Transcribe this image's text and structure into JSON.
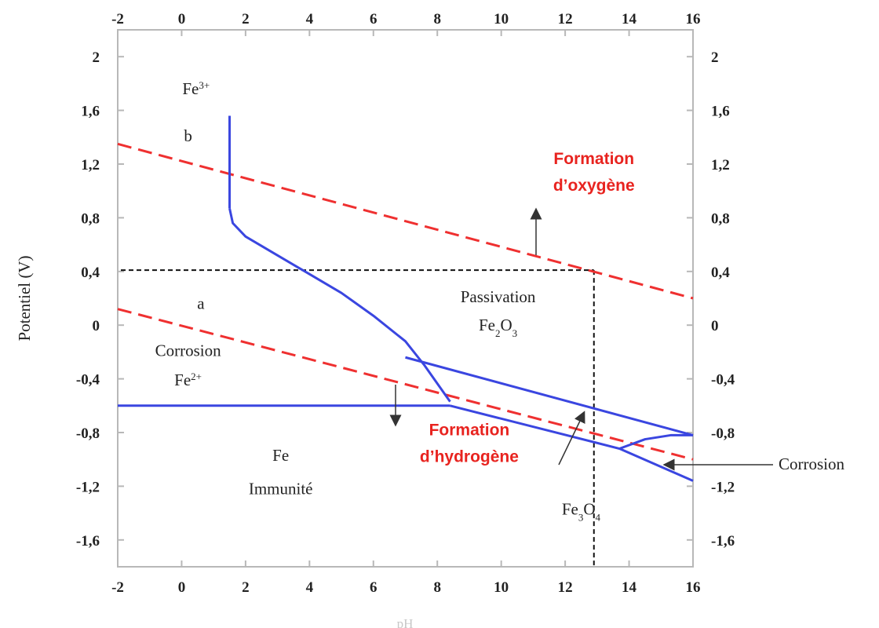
{
  "chart_data": {
    "type": "line",
    "title": "",
    "xlabel": "pH",
    "ylabel": "Potentiel (V)",
    "xlim": [
      -2,
      16
    ],
    "ylim": [
      -1.8,
      2.2
    ],
    "x_ticks": [
      -2,
      0,
      2,
      4,
      6,
      8,
      10,
      12,
      14,
      16
    ],
    "x_tick_labels": [
      "-2",
      "0",
      "2",
      "4",
      "6",
      "8",
      "10",
      "12",
      "14",
      "16"
    ],
    "y_ticks": [
      2,
      1.6,
      1.2,
      0.8,
      0.4,
      0,
      -0.4,
      -0.8,
      -1.2,
      -1.6
    ],
    "y_tick_labels": [
      "2",
      "1,6",
      "1,2",
      "0,8",
      "0,4",
      "0",
      "-0,4",
      "-0,8",
      "-1,2",
      "-1,6"
    ],
    "boundaries": [
      {
        "id": "fe3-fe2-vertical",
        "points": [
          [
            1.5,
            1.56
          ],
          [
            1.5,
            0.87
          ]
        ]
      },
      {
        "id": "fe3-oxide",
        "points": [
          [
            1.5,
            0.87
          ],
          [
            1.6,
            0.76
          ],
          [
            2.0,
            0.66
          ],
          [
            3.0,
            0.52
          ],
          [
            4.0,
            0.38
          ],
          [
            5.0,
            0.24
          ],
          [
            6.0,
            0.07
          ],
          [
            7.0,
            -0.12
          ],
          [
            7.6,
            -0.3
          ],
          [
            8.4,
            -0.57
          ]
        ]
      },
      {
        "id": "fe2-fe-horizontal",
        "points": [
          [
            -2,
            -0.6
          ],
          [
            8.4,
            -0.6
          ]
        ]
      },
      {
        "id": "fe-fe3o4",
        "points": [
          [
            8.4,
            -0.6
          ],
          [
            13.7,
            -0.92
          ],
          [
            16,
            -1.16
          ]
        ]
      },
      {
        "id": "fe3o4-fe2o3-upper",
        "points": [
          [
            7.0,
            -0.24
          ],
          [
            16,
            -0.82
          ]
        ]
      },
      {
        "id": "fe3o4-loop-lower",
        "points": [
          [
            13.7,
            -0.92
          ],
          [
            14.5,
            -0.85
          ],
          [
            15.3,
            -0.82
          ],
          [
            16,
            -0.82
          ]
        ]
      }
    ],
    "water_lines": [
      {
        "label": "a",
        "points": [
          [
            -2,
            0.12
          ],
          [
            16,
            -1.0
          ]
        ]
      },
      {
        "label": "b",
        "points": [
          [
            -2,
            1.35
          ],
          [
            16,
            0.2
          ]
        ]
      }
    ],
    "reference_point": {
      "x": 12.9,
      "y": 0.41
    },
    "regions": [
      {
        "id": "fe3",
        "text": "Fe",
        "sup": "3+",
        "x": 0.45,
        "y": 1.72
      },
      {
        "id": "corrosion-fe2-a",
        "text": "Corrosion",
        "x": 0.2,
        "y": -0.23
      },
      {
        "id": "corrosion-fe2-b",
        "text": "Fe",
        "sup": "2+",
        "x": 0.2,
        "y": -0.45
      },
      {
        "id": "passivation-a",
        "text": "Passivation",
        "x": 9.9,
        "y": 0.17
      },
      {
        "id": "passivation-b",
        "text": "Fe",
        "sub": "2",
        "text2": "O",
        "sub2": "3",
        "x": 9.9,
        "y": -0.04
      },
      {
        "id": "immunite-a",
        "text": "Fe",
        "x": 3.1,
        "y": -1.01
      },
      {
        "id": "immunite-b",
        "text": "Immunité",
        "x": 3.1,
        "y": -1.26
      },
      {
        "id": "fe3o4",
        "text": "Fe",
        "sub": "3",
        "text2": "O",
        "sub2": "4",
        "x": 12.5,
        "y": -1.41
      },
      {
        "id": "line-a",
        "text": "a",
        "x": 0.6,
        "y": 0.12
      },
      {
        "id": "line-b",
        "text": "b",
        "x": 0.2,
        "y": 1.37
      }
    ],
    "annotations_red": [
      {
        "text": "Formation",
        "x": 12.9,
        "y": 1.2
      },
      {
        "text": "d’oxygène",
        "x": 12.9,
        "y": 1.0
      },
      {
        "text": "Formation",
        "x": 9.0,
        "y": -0.82
      },
      {
        "text": "d’hydrogène",
        "x": 9.0,
        "y": -1.02
      }
    ],
    "outside_label": {
      "text": "Corrosion"
    },
    "colors": {
      "boundary": "#3a46e0",
      "water": "#ef3030",
      "annotation": "#e8231f",
      "axis": "#b8b8b8",
      "text": "#222222"
    }
  }
}
